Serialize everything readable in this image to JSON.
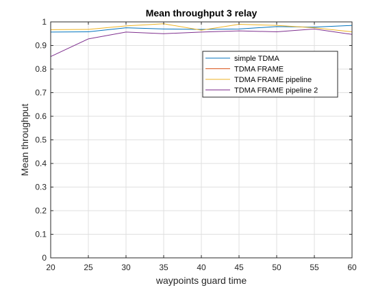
{
  "chart_data": {
    "type": "line",
    "title": "Mean throughput 3 relay",
    "xlabel": "waypoints guard time",
    "ylabel": "Mean throughput",
    "xlim": [
      20,
      60
    ],
    "ylim": [
      0,
      1
    ],
    "xticks": [
      "20",
      "25",
      "30",
      "35",
      "40",
      "45",
      "50",
      "55",
      "60"
    ],
    "yticks": [
      "0",
      "0.1",
      "0.2",
      "0.3",
      "0.4",
      "0.5",
      "0.6",
      "0.7",
      "0.8",
      "0.9",
      "1"
    ],
    "grid": true,
    "legend_position": "top-right",
    "x": [
      20,
      25,
      30,
      35,
      40,
      45,
      50,
      55,
      60
    ],
    "series": [
      {
        "name": "simple TDMA",
        "color": "#0072bd",
        "values": [
          0.957,
          0.958,
          0.975,
          0.97,
          0.968,
          0.97,
          0.98,
          0.978,
          0.985
        ]
      },
      {
        "name": "TDMA FRAME",
        "color": "#d95319",
        "values": [
          1.0,
          1.0,
          1.0,
          1.0,
          1.0,
          1.0,
          1.0,
          1.0,
          1.0
        ]
      },
      {
        "name": "TDMA FRAME pipeline",
        "color": "#edb120",
        "values": [
          0.967,
          0.968,
          0.983,
          0.992,
          0.965,
          0.99,
          0.985,
          0.975,
          0.958
        ]
      },
      {
        "name": "TDMA FRAME pipeline 2",
        "color": "#7e2f8e",
        "values": [
          0.853,
          0.928,
          0.957,
          0.95,
          0.957,
          0.962,
          0.958,
          0.97,
          0.947
        ]
      }
    ]
  }
}
